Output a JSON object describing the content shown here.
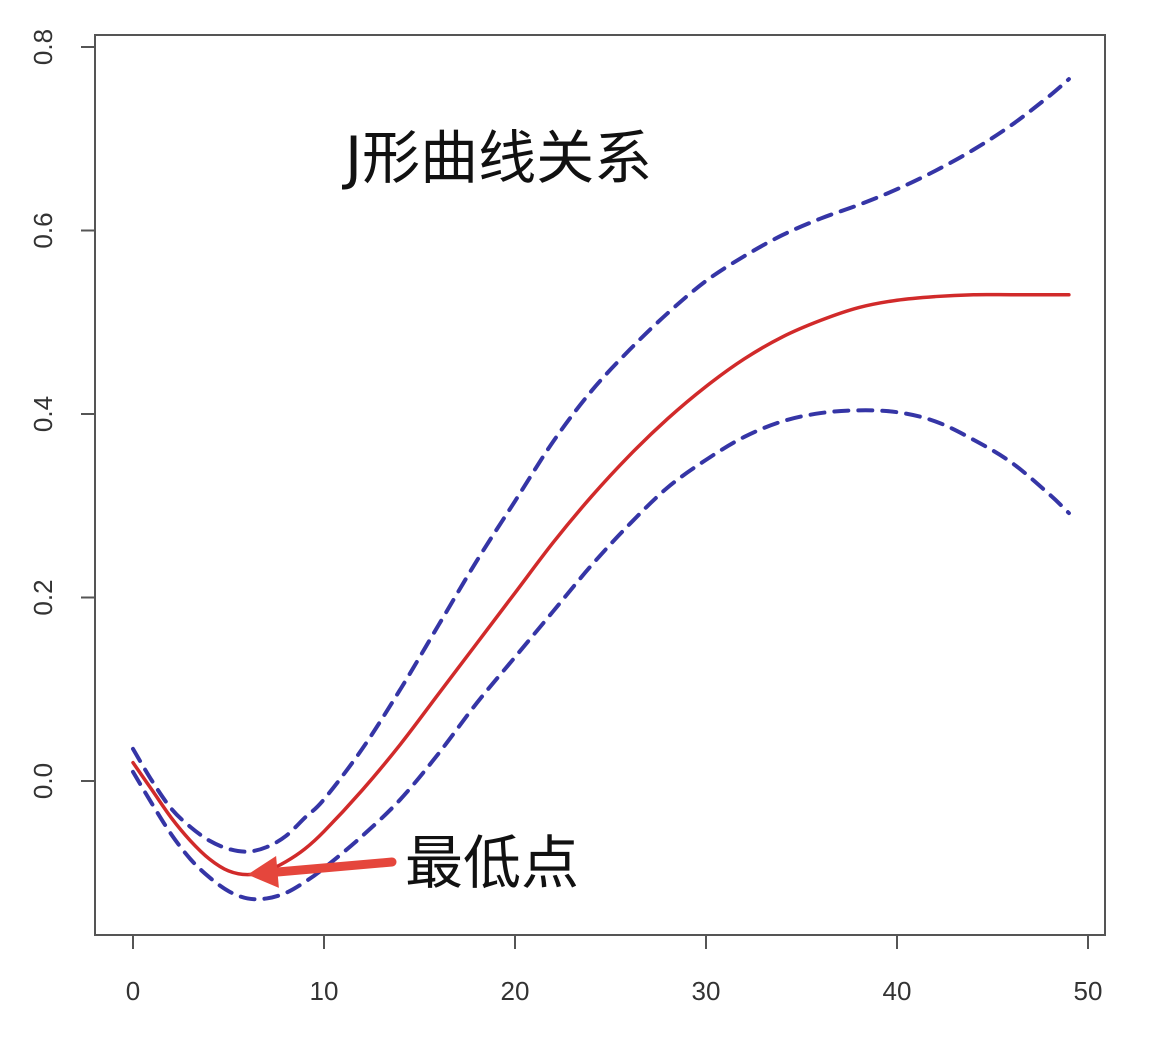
{
  "chart_data": {
    "type": "line",
    "title": "",
    "xlabel": "",
    "ylabel": "",
    "xlim": [
      0,
      50
    ],
    "ylim": [
      -0.13,
      0.8
    ],
    "x_ticks": [
      0,
      10,
      20,
      30,
      40,
      50
    ],
    "y_ticks": [
      0.0,
      0.2,
      0.4,
      0.6,
      0.8
    ],
    "x_tick_labels": [
      "0",
      "10",
      "20",
      "30",
      "40",
      "50"
    ],
    "y_tick_labels": [
      "0.0",
      "0.2",
      "0.4",
      "0.6",
      "0.8"
    ],
    "grid": false,
    "series": [
      {
        "role": "estimate",
        "color": "#d12a2a",
        "style": "solid",
        "x": [
          0,
          1,
          2,
          3,
          4,
          5,
          6,
          7,
          8,
          9,
          10,
          12,
          14,
          16,
          18,
          20,
          22,
          24,
          26,
          28,
          30,
          32,
          34,
          36,
          38,
          40,
          42,
          44,
          46,
          48,
          49
        ],
        "y": [
          0.02,
          -0.01,
          -0.04,
          -0.065,
          -0.085,
          -0.098,
          -0.102,
          -0.098,
          -0.088,
          -0.074,
          -0.055,
          -0.01,
          0.04,
          0.095,
          0.15,
          0.205,
          0.26,
          0.31,
          0.355,
          0.395,
          0.43,
          0.46,
          0.484,
          0.502,
          0.516,
          0.524,
          0.528,
          0.53,
          0.53,
          0.53,
          0.53
        ]
      },
      {
        "role": "upper-ci",
        "color": "#3535a6",
        "style": "dashed",
        "x": [
          0,
          1,
          2,
          3,
          4,
          5,
          6,
          7,
          8,
          9,
          10,
          12,
          14,
          16,
          18,
          20,
          22,
          24,
          26,
          28,
          30,
          32,
          34,
          36,
          38,
          40,
          42,
          44,
          46,
          48,
          49
        ],
        "y": [
          0.035,
          0.0,
          -0.03,
          -0.05,
          -0.065,
          -0.074,
          -0.077,
          -0.072,
          -0.06,
          -0.04,
          -0.02,
          0.035,
          0.1,
          0.17,
          0.24,
          0.305,
          0.37,
          0.425,
          0.47,
          0.51,
          0.545,
          0.572,
          0.595,
          0.613,
          0.628,
          0.645,
          0.665,
          0.688,
          0.715,
          0.747,
          0.765
        ]
      },
      {
        "role": "lower-ci",
        "color": "#3535a6",
        "style": "dashed",
        "x": [
          0,
          1,
          2,
          3,
          4,
          5,
          6,
          7,
          8,
          9,
          10,
          12,
          14,
          16,
          18,
          20,
          22,
          24,
          26,
          28,
          30,
          32,
          34,
          36,
          38,
          40,
          42,
          44,
          46,
          48,
          49
        ],
        "y": [
          0.01,
          -0.025,
          -0.058,
          -0.085,
          -0.105,
          -0.12,
          -0.128,
          -0.128,
          -0.122,
          -0.11,
          -0.095,
          -0.06,
          -0.02,
          0.03,
          0.085,
          0.135,
          0.185,
          0.235,
          0.28,
          0.32,
          0.35,
          0.375,
          0.392,
          0.401,
          0.404,
          0.402,
          0.392,
          0.372,
          0.347,
          0.312,
          0.292
        ]
      }
    ],
    "annotations": {
      "heading": "J形曲线关系",
      "min_label": "最低点",
      "min_point": [
        6,
        -0.102
      ],
      "arrow_color": "#e5463c"
    }
  }
}
